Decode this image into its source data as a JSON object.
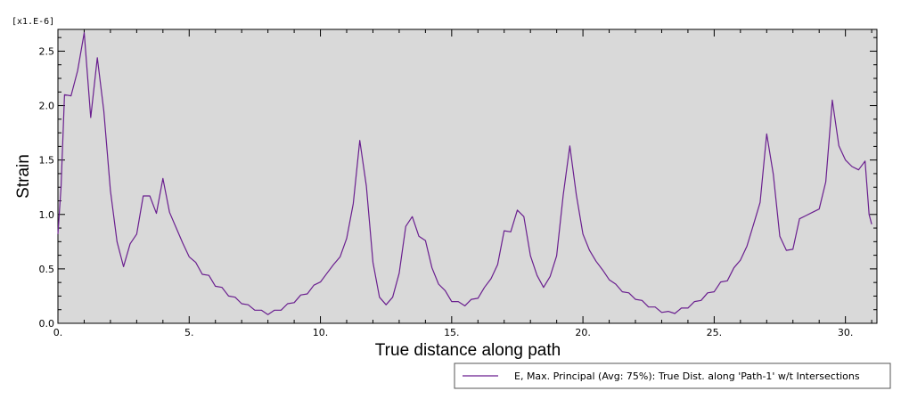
{
  "chart_data": {
    "type": "line",
    "title": "",
    "xlabel": "True distance along path",
    "ylabel": "Strain",
    "y_scale_label": "[x1.E-6]",
    "xlim": [
      0,
      31.2
    ],
    "ylim": [
      0,
      2.7
    ],
    "grid": false,
    "plot_background": "#d9d9d9",
    "legend_placement": "bottom-right",
    "x_ticks": [
      {
        "value": 0,
        "label": "0."
      },
      {
        "value": 5,
        "label": "5."
      },
      {
        "value": 10,
        "label": "10."
      },
      {
        "value": 15,
        "label": "15."
      },
      {
        "value": 20,
        "label": "20."
      },
      {
        "value": 25,
        "label": "25."
      },
      {
        "value": 30,
        "label": "30."
      }
    ],
    "y_ticks": [
      {
        "value": 0,
        "label": "0.0"
      },
      {
        "value": 0.5,
        "label": "0.5"
      },
      {
        "value": 1.0,
        "label": "1.0"
      },
      {
        "value": 1.5,
        "label": "1.5"
      },
      {
        "value": 2.0,
        "label": "2.0"
      },
      {
        "value": 2.5,
        "label": "2.5"
      }
    ],
    "series": [
      {
        "name": "E, Max. Principal (Avg: 75%): True Dist. along 'Path-1' w/t Intersections",
        "color": "#6a1f8f",
        "x": [
          0,
          0.12,
          0.25,
          0.5,
          0.75,
          1.0,
          1.25,
          1.5,
          1.75,
          2.0,
          2.25,
          2.5,
          2.75,
          3.0,
          3.25,
          3.5,
          3.75,
          4.0,
          4.25,
          4.5,
          4.75,
          5.0,
          5.25,
          5.5,
          5.75,
          6.0,
          6.25,
          6.5,
          6.75,
          7.0,
          7.25,
          7.5,
          7.75,
          8.0,
          8.25,
          8.5,
          8.75,
          9.0,
          9.25,
          9.5,
          9.75,
          10.0,
          10.25,
          10.5,
          10.75,
          11.0,
          11.25,
          11.5,
          11.75,
          12.0,
          12.25,
          12.5,
          12.75,
          13.0,
          13.25,
          13.5,
          13.75,
          14.0,
          14.25,
          14.5,
          14.75,
          15.0,
          15.25,
          15.5,
          15.75,
          16.0,
          16.25,
          16.5,
          16.75,
          17.0,
          17.25,
          17.5,
          17.75,
          18.0,
          18.25,
          18.5,
          18.75,
          19.0,
          19.25,
          19.5,
          19.75,
          20.0,
          20.25,
          20.5,
          20.75,
          21.0,
          21.25,
          21.5,
          21.75,
          22.0,
          22.25,
          22.5,
          22.75,
          23.0,
          23.25,
          23.5,
          23.75,
          24.0,
          24.25,
          24.5,
          24.75,
          25.0,
          25.25,
          25.5,
          25.75,
          26.0,
          26.25,
          26.5,
          26.75,
          27.0,
          27.25,
          27.5,
          27.75,
          28.0,
          28.25,
          28.5,
          28.75,
          29.0,
          29.25,
          29.5,
          29.75,
          30.0,
          30.25,
          30.5,
          30.75,
          30.9,
          31.0
        ],
        "y": [
          0.82,
          1.25,
          2.1,
          2.09,
          2.32,
          2.67,
          1.89,
          2.44,
          1.95,
          1.22,
          0.75,
          0.52,
          0.73,
          0.82,
          1.17,
          1.17,
          1.01,
          1.33,
          1.02,
          0.88,
          0.74,
          0.61,
          0.56,
          0.45,
          0.44,
          0.34,
          0.33,
          0.25,
          0.24,
          0.18,
          0.17,
          0.12,
          0.12,
          0.08,
          0.12,
          0.12,
          0.18,
          0.19,
          0.26,
          0.27,
          0.35,
          0.38,
          0.46,
          0.54,
          0.61,
          0.78,
          1.1,
          1.68,
          1.26,
          0.56,
          0.24,
          0.17,
          0.24,
          0.46,
          0.89,
          0.98,
          0.8,
          0.76,
          0.51,
          0.36,
          0.3,
          0.2,
          0.2,
          0.16,
          0.22,
          0.23,
          0.33,
          0.41,
          0.54,
          0.85,
          0.84,
          1.04,
          0.98,
          0.62,
          0.44,
          0.33,
          0.43,
          0.62,
          1.18,
          1.63,
          1.18,
          0.82,
          0.67,
          0.57,
          0.49,
          0.4,
          0.36,
          0.29,
          0.28,
          0.22,
          0.21,
          0.15,
          0.15,
          0.1,
          0.11,
          0.09,
          0.14,
          0.14,
          0.2,
          0.21,
          0.28,
          0.29,
          0.38,
          0.39,
          0.51,
          0.58,
          0.71,
          0.91,
          1.11,
          1.74,
          1.37,
          0.8,
          0.67,
          0.68,
          0.96,
          0.99,
          1.02,
          1.05,
          1.3,
          2.05,
          1.63,
          1.5,
          1.44,
          1.41,
          1.49,
          1.0,
          0.91
        ]
      }
    ]
  }
}
